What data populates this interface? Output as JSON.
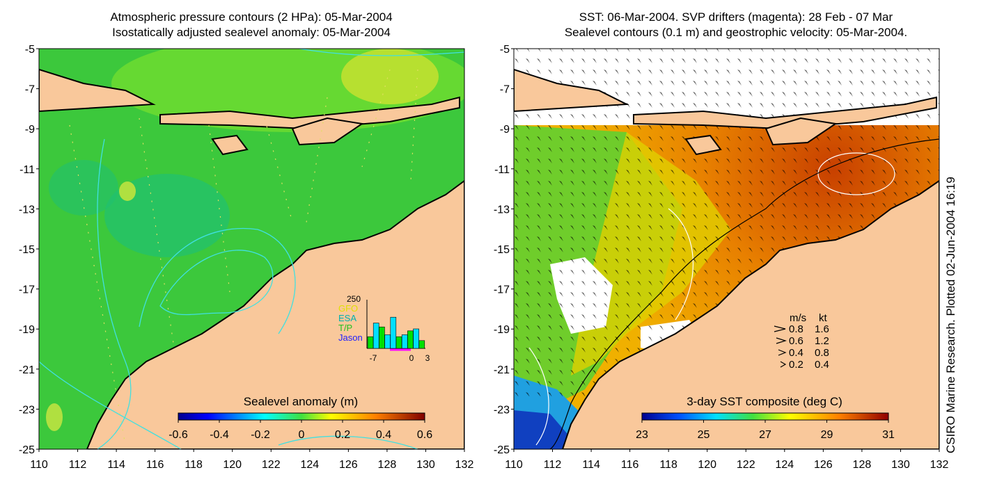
{
  "left_panel": {
    "title_line1": "Atmospheric pressure contours (2 HPa): 05-Mar-2004",
    "title_line2": "Isostatically adjusted sealevel anomaly: 05-Mar-2004",
    "colorbar_label": "Sealevel anomaly (m)",
    "colorbar_ticks": [
      "-0.6",
      "-0.4",
      "-0.2",
      "0",
      "0.2",
      "0.4",
      "0.6"
    ],
    "inset": {
      "y_max_label": "250",
      "legend": [
        {
          "label": "GFO",
          "color": "#e0e000"
        },
        {
          "label": "ESA",
          "color": "#00b0b0"
        },
        {
          "label": "T/P",
          "color": "#20c020"
        },
        {
          "label": "Jason",
          "color": "#2020ff"
        }
      ],
      "x_ticks": [
        "-7",
        "0",
        "3"
      ],
      "bar_values": [
        60,
        130,
        110,
        70,
        160,
        60,
        70,
        90,
        100,
        40
      ],
      "bar_colors": [
        "#00e000",
        "#00e0ff",
        "#00e000",
        "#00e0ff",
        "#00e0ff",
        "#00e000",
        "#00e0ff",
        "#00e000",
        "#00e0ff",
        "#00e000"
      ]
    }
  },
  "right_panel": {
    "title_line1": "SST: 06-Mar-2004. SVP drifters (magenta): 28 Feb - 07 Mar",
    "title_line2": "Sealevel contours (0.1 m) and geostrophic velocity: 05-Mar-2004.",
    "colorbar_label": "3-day SST composite (deg C)",
    "colorbar_ticks": [
      "23",
      "25",
      "27",
      "29",
      "31"
    ],
    "speed_legend": {
      "header_ms": "m/s",
      "header_kt": "kt",
      "rows": [
        {
          "ms": "0.8",
          "kt": "1.6"
        },
        {
          "ms": "0.6",
          "kt": "1.2"
        },
        {
          "ms": "0.4",
          "kt": "0.8"
        },
        {
          "ms": "0.2",
          "kt": "0.4"
        }
      ]
    }
  },
  "axes": {
    "x_ticks": [
      "110",
      "112",
      "114",
      "116",
      "118",
      "120",
      "122",
      "124",
      "126",
      "128",
      "130",
      "132"
    ],
    "y_ticks": [
      "-5",
      "-7",
      "-9",
      "-11",
      "-13",
      "-15",
      "-17",
      "-19",
      "-21",
      "-23",
      "-25"
    ]
  },
  "credit": "CSIRO Marine Research. Plotted 02-Jun-2004 16:19",
  "colors": {
    "land": "#f9c89b",
    "ocean_left": "#3cc83c",
    "coast": "#000000",
    "contour_cyan": "#40e0e0",
    "contour_white": "#ffffff"
  }
}
